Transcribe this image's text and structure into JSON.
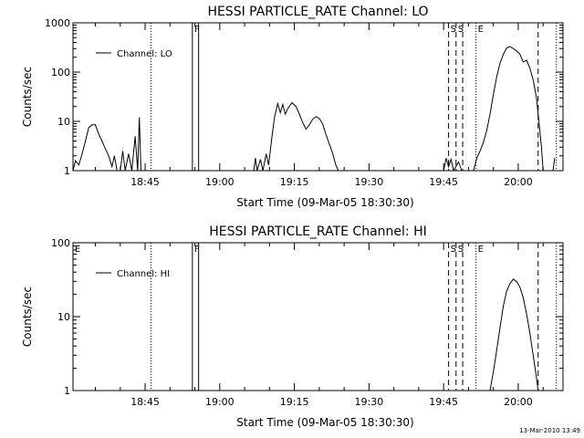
{
  "footer": {
    "timestamp": "13-Mar-2010 13:49"
  },
  "chart_data": [
    {
      "type": "line",
      "title": "HESSI PARTICLE_RATE Channel: LO",
      "xlabel": "Start Time (09-Mar-05 18:30:30)",
      "ylabel": "Counts/sec",
      "y_scale": "log",
      "ylim": [
        1,
        1000
      ],
      "xlim": [
        "18:30:30",
        "20:09:00"
      ],
      "x_ticks": [
        "18:45",
        "19:00",
        "19:15",
        "19:30",
        "19:45",
        "20:00"
      ],
      "y_ticks": [
        "1",
        "10",
        "100",
        "1000"
      ],
      "legend": {
        "position": "top-left",
        "entries": [
          "Channel: LO"
        ]
      },
      "markers": [
        {
          "label": "F",
          "times": [
            "18:54:30",
            "18:55:45"
          ],
          "style": "solid"
        },
        {
          "label": "S",
          "times": [
            "19:46:00"
          ],
          "style": "dashed"
        },
        {
          "label": "S",
          "times": [
            "19:47:30"
          ],
          "style": "dashed"
        },
        {
          "label": "",
          "times": [
            "19:48:50"
          ],
          "style": "dashed"
        },
        {
          "label": "E",
          "times": [
            "19:51:30"
          ],
          "style": "dotted"
        },
        {
          "label": "",
          "times": [
            "20:04:00"
          ],
          "style": "dashed"
        },
        {
          "label": "",
          "times": [
            "18:46:10",
            "20:07:40"
          ],
          "style": "dotted"
        }
      ],
      "series": [
        {
          "segments": [
            [
              [
                "18:30:30",
                1.0
              ],
              [
                "18:31:00",
                1.6
              ],
              [
                "18:31:40",
                1.3
              ],
              [
                "18:32:20",
                2.2
              ],
              [
                "18:33:00",
                4.0
              ],
              [
                "18:33:40",
                7.5
              ],
              [
                "18:34:20",
                8.5
              ],
              [
                "18:35:00",
                8.5
              ],
              [
                "18:35:40",
                5.5
              ],
              [
                "18:36:20",
                4.0
              ],
              [
                "18:37:00",
                2.8
              ],
              [
                "18:37:40",
                2.0
              ],
              [
                "18:38:20",
                1.2
              ],
              [
                "18:38:50",
                2.0
              ],
              [
                "18:39:20",
                1.0
              ],
              [
                "18:40:00",
                1.0
              ],
              [
                "18:40:30",
                2.5
              ],
              [
                "18:41:00",
                1.0
              ],
              [
                "18:41:40",
                2.2
              ],
              [
                "18:42:20",
                1.0
              ],
              [
                "18:43:00",
                5.0
              ],
              [
                "18:43:30",
                1.0
              ],
              [
                "18:43:50",
                12.0
              ],
              [
                "18:44:10",
                1.0
              ]
            ],
            [
              [
                "19:06:50",
                1.0
              ],
              [
                "19:07:10",
                1.8
              ],
              [
                "19:07:30",
                1.0
              ],
              [
                "19:08:10",
                1.7
              ],
              [
                "19:08:40",
                1.0
              ],
              [
                "19:09:20",
                2.2
              ],
              [
                "19:09:50",
                1.3
              ],
              [
                "19:10:30",
                5.0
              ],
              [
                "19:11:00",
                12.0
              ],
              [
                "19:11:40",
                23.0
              ],
              [
                "19:12:10",
                15.0
              ],
              [
                "19:12:40",
                22.0
              ],
              [
                "19:13:10",
                14.0
              ],
              [
                "19:13:40",
                18.0
              ],
              [
                "19:14:30",
                24.0
              ],
              [
                "19:15:20",
                20.0
              ],
              [
                "19:16:00",
                14.0
              ],
              [
                "19:16:40",
                9.5
              ],
              [
                "19:17:20",
                7.0
              ],
              [
                "19:18:00",
                8.5
              ],
              [
                "19:18:40",
                11.0
              ],
              [
                "19:19:20",
                12.5
              ],
              [
                "19:20:00",
                11.5
              ],
              [
                "19:20:40",
                9.0
              ],
              [
                "19:21:20",
                5.5
              ],
              [
                "19:22:00",
                3.5
              ],
              [
                "19:22:40",
                2.3
              ],
              [
                "19:23:20",
                1.3
              ],
              [
                "19:23:50",
                1.0
              ]
            ],
            [
              [
                "19:45:00",
                1.0
              ],
              [
                "19:45:30",
                1.8
              ],
              [
                "19:46:00",
                1.2
              ],
              [
                "19:46:30",
                1.7
              ],
              [
                "19:47:00",
                1.0
              ],
              [
                "19:48:00",
                1.5
              ],
              [
                "19:48:40",
                1.0
              ]
            ],
            [
              [
                "19:51:00",
                1.0
              ],
              [
                "19:51:40",
                1.8
              ],
              [
                "19:52:20",
                2.5
              ],
              [
                "19:53:00",
                3.8
              ],
              [
                "19:53:40",
                6.5
              ],
              [
                "19:54:20",
                14.0
              ],
              [
                "19:55:00",
                35.0
              ],
              [
                "19:55:40",
                80.0
              ],
              [
                "19:56:20",
                150.0
              ],
              [
                "19:57:00",
                230.0
              ],
              [
                "19:57:40",
                310.0
              ],
              [
                "19:58:20",
                330.0
              ],
              [
                "19:59:00",
                300.0
              ],
              [
                "19:59:40",
                270.0
              ],
              [
                "20:00:20",
                230.0
              ],
              [
                "20:01:00",
                160.0
              ],
              [
                "20:01:40",
                175.0
              ],
              [
                "20:02:20",
                120.0
              ],
              [
                "20:03:00",
                70.0
              ],
              [
                "20:03:40",
                30.0
              ],
              [
                "20:04:10",
                10.0
              ],
              [
                "20:04:40",
                3.0
              ],
              [
                "20:05:00",
                1.0
              ]
            ],
            [
              [
                "20:07:00",
                1.0
              ],
              [
                "20:07:20",
                1.8
              ]
            ]
          ]
        }
      ]
    },
    {
      "type": "line",
      "title": "HESSI PARTICLE_RATE Channel: HI",
      "xlabel": "Start Time (09-Mar-05 18:30:30)",
      "ylabel": "Counts/sec",
      "y_scale": "log",
      "ylim": [
        1,
        100
      ],
      "xlim": [
        "18:30:30",
        "20:09:00"
      ],
      "x_ticks": [
        "18:45",
        "19:00",
        "19:15",
        "19:30",
        "19:45",
        "20:00"
      ],
      "y_ticks": [
        "1",
        "10",
        "100"
      ],
      "legend": {
        "position": "top-left",
        "entries": [
          "Channel: HI"
        ]
      },
      "markers": [
        {
          "label": "E",
          "times": [
            "18:30:30"
          ],
          "style": "none"
        },
        {
          "label": "F",
          "times": [
            "18:54:30",
            "18:55:45"
          ],
          "style": "solid"
        },
        {
          "label": "S",
          "times": [
            "19:46:00"
          ],
          "style": "dashed"
        },
        {
          "label": "S",
          "times": [
            "19:47:30"
          ],
          "style": "dashed"
        },
        {
          "label": "",
          "times": [
            "19:48:50"
          ],
          "style": "dashed"
        },
        {
          "label": "E",
          "times": [
            "19:51:30"
          ],
          "style": "dotted"
        },
        {
          "label": "",
          "times": [
            "20:04:00"
          ],
          "style": "dashed"
        },
        {
          "label": "",
          "times": [
            "18:46:10",
            "20:07:40"
          ],
          "style": "dotted"
        }
      ],
      "series": [
        {
          "segments": [
            [
              [
                "19:54:20",
                1.0
              ],
              [
                "19:55:00",
                1.8
              ],
              [
                "19:55:40",
                3.5
              ],
              [
                "19:56:20",
                7.0
              ],
              [
                "19:57:00",
                14.0
              ],
              [
                "19:57:40",
                22.0
              ],
              [
                "19:58:20",
                28.0
              ],
              [
                "19:59:00",
                32.0
              ],
              [
                "19:59:40",
                30.0
              ],
              [
                "20:00:20",
                25.0
              ],
              [
                "20:01:00",
                18.0
              ],
              [
                "20:01:40",
                11.0
              ],
              [
                "20:02:20",
                6.0
              ],
              [
                "20:03:00",
                3.0
              ],
              [
                "20:03:40",
                1.5
              ],
              [
                "20:04:00",
                1.0
              ]
            ]
          ]
        }
      ]
    }
  ]
}
